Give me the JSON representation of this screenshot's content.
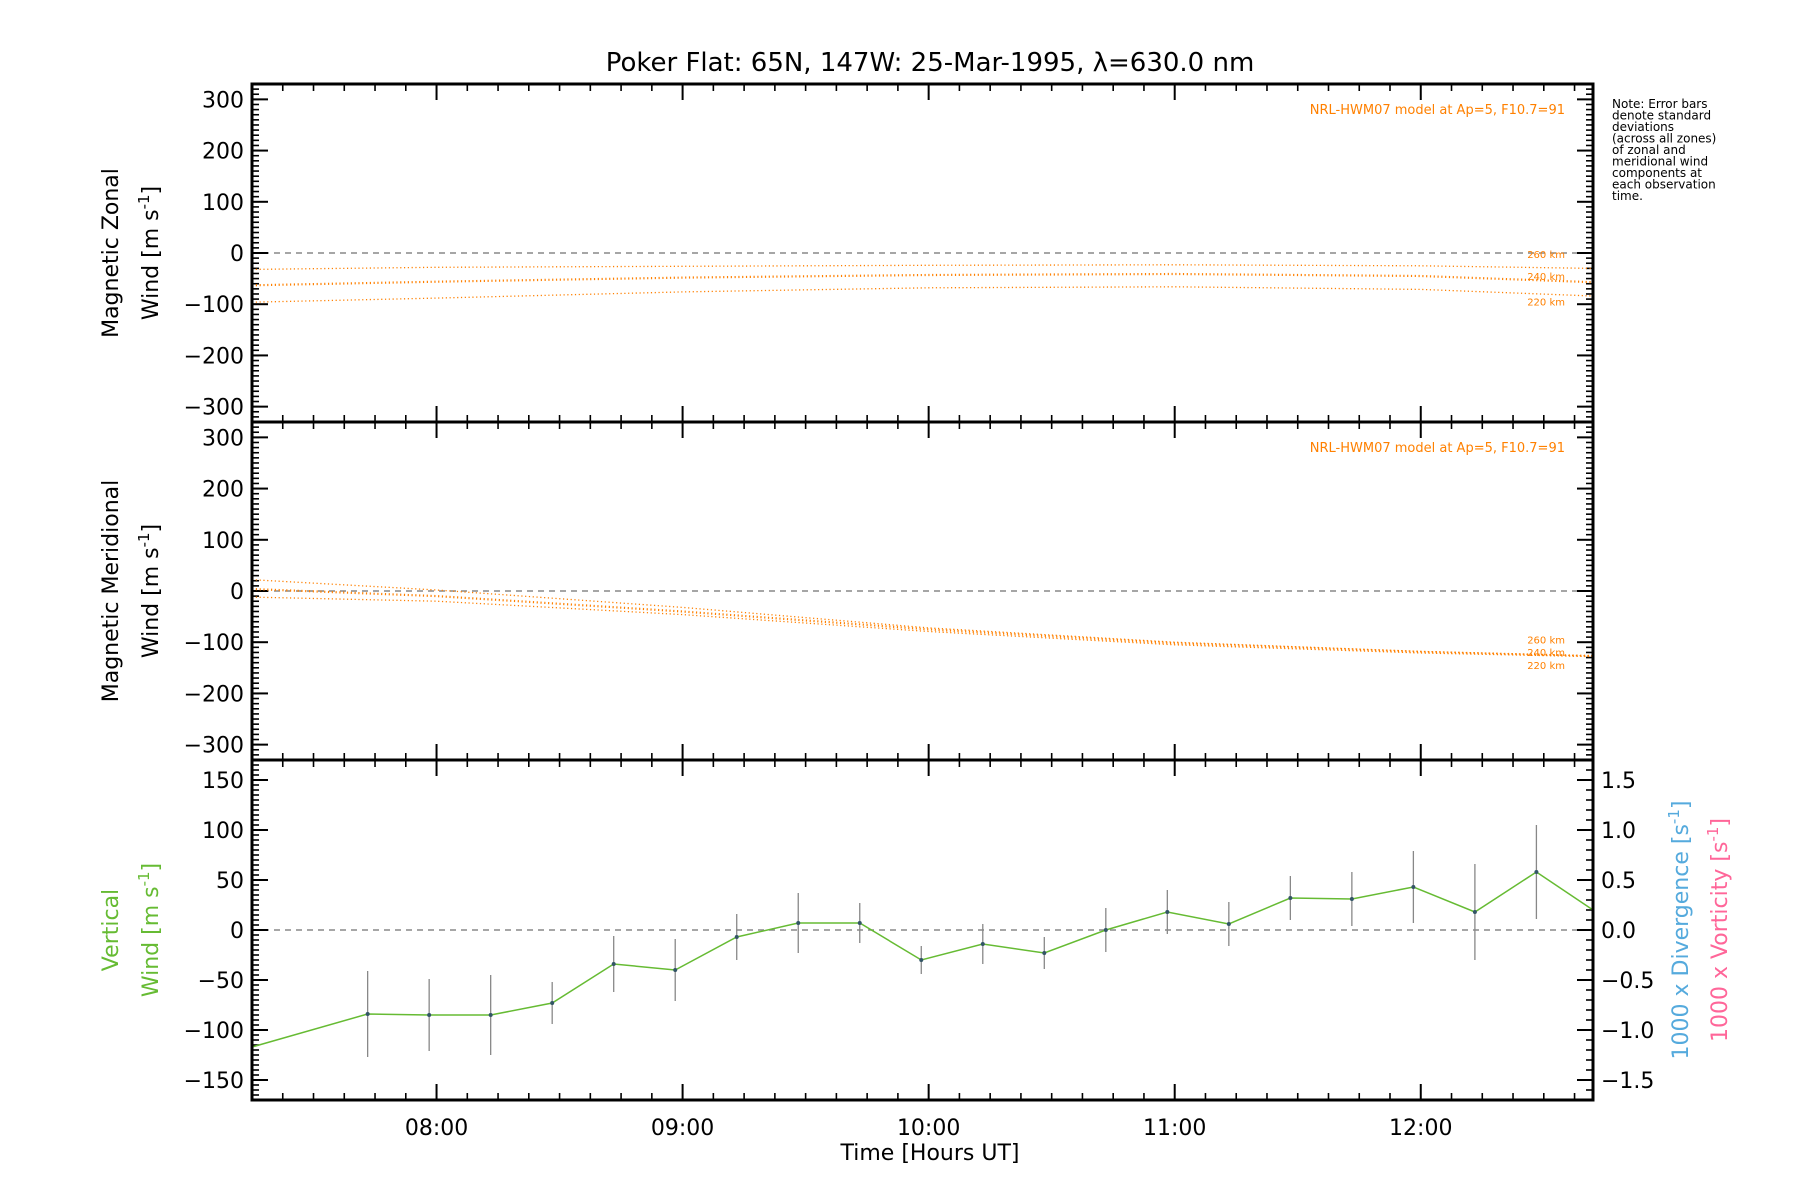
{
  "title": "Poker Flat: 65N, 147W: 25-Mar-1995, λ=630.0 nm",
  "note": [
    "Note: Error bars",
    "denote standard",
    "deviations",
    "(across all zones)",
    "of zonal and",
    "meridional wind",
    "components at",
    "each observation",
    "time."
  ],
  "colors": {
    "axes": "#000000",
    "model": "#ff8000",
    "vertical": "#66bb33",
    "divergence": "#55aadd",
    "vorticity": "#ff6699",
    "errorbar": "#888888",
    "zero_line": "#888888",
    "point": "#335566"
  },
  "chart_data": [
    {
      "type": "line",
      "panel": "zonal",
      "ylabel_line1": "Magnetic Zonal",
      "ylabel_line2": "Wind [m s",
      "ylabel_exp": "-1",
      "ylabel_close": "]",
      "ylim": [
        -330,
        330
      ],
      "yticks": [
        300,
        200,
        100,
        0,
        -100,
        -200,
        -300
      ],
      "ytick_labels": [
        "300",
        "200",
        "100",
        "0",
        "−100",
        "−200",
        "−300"
      ],
      "xlim": [
        7.25,
        12.7
      ],
      "zero_line": true,
      "model_label": "NRL-HWM07 model at Ap=5, F10.7=91",
      "series": [
        {
          "name": "260 km",
          "x": [
            7.25,
            8.0,
            9.0,
            10.0,
            11.0,
            12.0,
            12.7
          ],
          "y": [
            -32,
            -28,
            -26,
            -24,
            -23,
            -25,
            -30
          ]
        },
        {
          "name": "240 km",
          "x": [
            7.25,
            8.0,
            9.0,
            10.0,
            11.0,
            12.0,
            12.7
          ],
          "y": [
            -63,
            -56,
            -48,
            -43,
            -41,
            -45,
            -57
          ]
        },
        {
          "name": "220 km",
          "x": [
            7.25,
            8.0,
            9.0,
            10.0,
            11.0,
            12.0,
            12.7
          ],
          "y": [
            -96,
            -88,
            -76,
            -68,
            -66,
            -71,
            -84
          ]
        }
      ]
    },
    {
      "type": "line",
      "panel": "meridional",
      "ylabel_line1": "Magnetic Meridional",
      "ylabel_line2": "Wind [m s",
      "ylabel_exp": "-1",
      "ylabel_close": "]",
      "ylim": [
        -330,
        330
      ],
      "yticks": [
        300,
        200,
        100,
        0,
        -100,
        -200,
        -300
      ],
      "ytick_labels": [
        "300",
        "200",
        "100",
        "0",
        "−100",
        "−200",
        "−300"
      ],
      "xlim": [
        7.25,
        12.7
      ],
      "zero_line": true,
      "model_label": "NRL-HWM07 model at Ap=5, F10.7=91",
      "series": [
        {
          "name": "260 km",
          "x": [
            7.25,
            8.0,
            9.0,
            10.0,
            11.0,
            12.0,
            12.7
          ],
          "y": [
            22,
            2,
            -32,
            -72,
            -100,
            -118,
            -127
          ]
        },
        {
          "name": "240 km",
          "x": [
            7.25,
            8.0,
            9.0,
            10.0,
            11.0,
            12.0,
            12.7
          ],
          "y": [
            4,
            -10,
            -40,
            -75,
            -102,
            -119,
            -127
          ]
        },
        {
          "name": "220 km",
          "x": [
            7.25,
            8.0,
            9.0,
            10.0,
            11.0,
            12.0,
            12.7
          ],
          "y": [
            -12,
            -20,
            -46,
            -79,
            -105,
            -121,
            -128
          ]
        }
      ]
    },
    {
      "type": "line",
      "panel": "vertical",
      "ylabel_line1": "Vertical",
      "ylabel_line2": "Wind [m s",
      "ylabel_exp": "-1",
      "ylabel_close": "]",
      "ylim": [
        -170,
        170
      ],
      "yticks": [
        150,
        100,
        50,
        0,
        -50,
        -100,
        -150
      ],
      "ytick_labels": [
        "150",
        "100",
        "50",
        "0",
        "−50",
        "−100",
        "−150"
      ],
      "y2lim": [
        -1.7,
        1.7
      ],
      "y2ticks": [
        1.5,
        1.0,
        0.5,
        0.0,
        -0.5,
        -1.0,
        -1.5
      ],
      "y2tick_labels": [
        "1.5",
        "1.0",
        "0.5",
        "0.0",
        "−0.5",
        "−1.0",
        "−1.5"
      ],
      "y2label_div": "1000 x Divergence [s",
      "y2label_vort": "1000 x Vorticity [s",
      "y2label_exp": "-1",
      "y2label_close": "]",
      "xlim": [
        7.25,
        12.7
      ],
      "xticks": [
        8,
        9,
        10,
        11,
        12
      ],
      "xtick_labels": [
        "08:00",
        "09:00",
        "10:00",
        "11:00",
        "12:00"
      ],
      "xlabel": "Time [Hours UT]",
      "zero_line": true,
      "series": [
        {
          "name": "Vertical Wind",
          "x": [
            7.25,
            7.72,
            7.97,
            8.22,
            8.47,
            8.72,
            8.97,
            9.22,
            9.47,
            9.72,
            9.97,
            10.22,
            10.47,
            10.72,
            10.97,
            11.22,
            11.47,
            11.72,
            11.97,
            12.22,
            12.47,
            12.7
          ],
          "y": [
            -117,
            -84,
            -85,
            -85,
            -73,
            -34,
            -40,
            -7,
            7,
            7,
            -30,
            -14,
            -23,
            0,
            18,
            6,
            32,
            31,
            43,
            18,
            58,
            20
          ],
          "err": [
            0,
            43,
            36,
            40,
            21,
            28,
            31,
            23,
            30,
            20,
            14,
            20,
            16,
            22,
            22,
            22,
            22,
            27,
            36,
            48,
            47,
            0
          ]
        }
      ]
    }
  ]
}
